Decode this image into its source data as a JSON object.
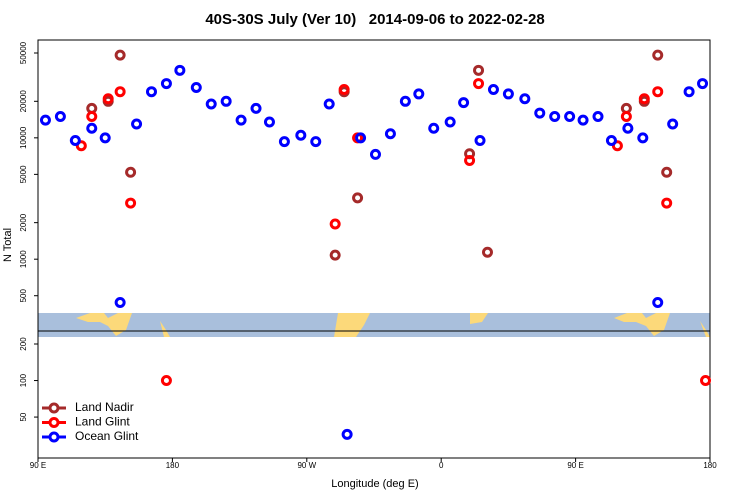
{
  "chart_data": {
    "type": "scatter",
    "title": "40S-30S July (Ver 10)   2014-09-06 to 2022-02-28",
    "x_label": "Longitude (deg E)",
    "y_label": "N Total",
    "xlim": [
      90,
      540
    ],
    "xticks": [
      {
        "value": 90,
        "label": "90 E"
      },
      180,
      {
        "value": 270,
        "label": "90 W"
      },
      {
        "value": 360,
        "label": "0"
      },
      {
        "value": 450,
        "label": "90 E"
      },
      {
        "value": 540,
        "label": "180"
      }
    ],
    "ylim": [
      23,
      64000
    ],
    "ylog": true,
    "yticks": [
      50000,
      20000,
      10000,
      5000,
      2000,
      1000,
      500,
      200,
      100,
      50
    ],
    "grid": false,
    "legend": "bottom-left",
    "series": [
      {
        "name": "Land Nadir",
        "color": "#a52a2a",
        "x": [
          126,
          137,
          145,
          152,
          289,
          295,
          304,
          379,
          385,
          391,
          484,
          496,
          505,
          511
        ],
        "values": [
          17500,
          20000,
          48000,
          5200,
          1080,
          24000,
          3200,
          7400,
          36000,
          1140,
          17500,
          20000,
          48000,
          5200
        ]
      },
      {
        "name": "Land Glint",
        "color": "#ff0000",
        "x": [
          119,
          126,
          137,
          145,
          152,
          176,
          289,
          295,
          304,
          379,
          385,
          478,
          484,
          496,
          505,
          511,
          537
        ],
        "values": [
          8600,
          15000,
          21000,
          24000,
          2900,
          100,
          1950,
          25000,
          10000,
          6500,
          28000,
          8600,
          15000,
          21000,
          24000,
          2900,
          100
        ]
      },
      {
        "name": "Ocean Glint",
        "color": "#0000ff",
        "x": [
          95,
          105,
          115,
          126,
          135,
          145,
          156,
          166,
          176,
          185,
          196,
          206,
          216,
          226,
          236,
          245,
          255,
          266,
          276,
          285,
          297,
          306,
          316,
          326,
          336,
          345,
          355,
          366,
          375,
          386,
          395,
          405,
          416,
          426,
          436,
          446,
          455,
          465,
          474,
          485,
          495,
          505,
          515,
          526,
          535
        ],
        "values": [
          14000,
          15000,
          9500,
          12000,
          10000,
          440,
          13000,
          24000,
          28000,
          36000,
          26000,
          19000,
          20000,
          14000,
          17500,
          13500,
          9300,
          10500,
          9300,
          19000,
          36,
          10000,
          7300,
          10800,
          20000,
          23000,
          12000,
          13500,
          19500,
          9500,
          25000,
          23000,
          21000,
          16000,
          15000,
          15000,
          14000,
          15000,
          9500,
          12000,
          10000,
          440,
          13000,
          24000,
          28000
        ]
      }
    ]
  }
}
